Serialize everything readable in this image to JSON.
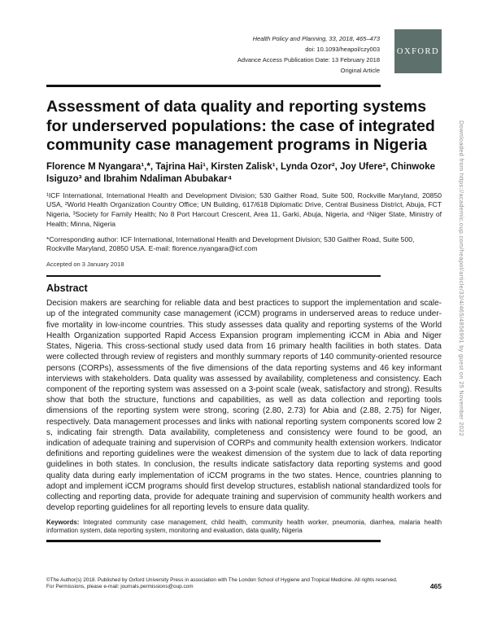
{
  "header": {
    "journal_line": "Health Policy and Planning, 33, 2018, 465–473",
    "doi_line": "doi: 10.1093/heapol/czy003",
    "advance_access_line": "Advance Access Publication Date: 13 February 2018",
    "article_type": "Original Article",
    "publisher_logo_text": "OXFORD",
    "publisher_logo_color": "#5e706c"
  },
  "article": {
    "title": "Assessment of data quality and reporting systems for underserved populations: the case of integrated community case management programs in Nigeria",
    "authors": "Florence M Nyangara¹,*, Tajrina Hai¹, Kirsten Zalisk¹, Lynda Ozor², Joy Ufere², Chinwoke Isiguzo³ and Ibrahim Ndaliman Abubakar⁴",
    "affiliations": "¹ICF International, International Health and Development Division; 530 Gaither Road, Suite 500, Rockville Maryland, 20850 USA, ²World Health Organization Country Office; UN Building, 617/618 Diplomatic Drive, Central Business District, Abuja, FCT Nigeria, ³Society for Family Health; No 8 Port Harcourt Crescent, Area 11, Garki, Abuja, Nigeria, and ⁴Niger State, Ministry of Health; Minna, Nigeria",
    "corresponding": "*Corresponding author: ICF International, International Health and Development Division; 530 Gaither Road, Suite 500, Rockville Maryland, 20850 USA. E-mail: florence.nyangara@icf.com",
    "accepted": "Accepted on 3 January 2018",
    "abstract_heading": "Abstract",
    "abstract": "Decision makers are searching for reliable data and best practices to support the implementation and scale-up of the integrated community case management (iCCM) programs in underserved areas to reduce under-five mortality in low-income countries. This study assesses data quality and reporting systems of the World Health Organization supported Rapid Access Expansion program implementing iCCM in Abia and Niger States, Nigeria. This cross-sectional study used data from 16 primary health facilities in both states. Data were collected through review of registers and monthly summary reports of 140 community-oriented resource persons (CORPs), assessments of the five dimensions of the data reporting systems and 46 key informant interviews with stakeholders. Data quality was assessed by availability, completeness and consistency. Each component of the reporting system was assessed on a 3-point scale (weak, satisfactory and strong). Results show that both the structure, functions and capabilities, as well as data collection and reporting tools dimensions of the reporting system were strong, scoring (2.80, 2.73) for Abia and (2.88, 2.75) for Niger, respectively. Data management processes and links with national reporting system components scored low 2 s, indicating fair strength. Data availability, completeness and consistency were found to be good, an indication of adequate training and supervision of CORPs and community health extension workers. Indicator definitions and reporting guidelines were the weakest dimension of the system due to lack of data reporting guidelines in both states. In conclusion, the results indicate satisfactory data reporting systems and good quality data during early implementation of iCCM programs in the two states. Hence, countries planning to adopt and implement iCCM programs should first develop structures, establish national standardized tools for collecting and reporting data, provide for adequate training and supervision of community health workers and develop reporting guidelines for all reporting levels to ensure data quality.",
    "keywords_label": "Keywords:",
    "keywords": " Integrated community case management, child health, community health worker, pneumonia, diarrhea, malaria health information system, data reporting system, monitoring and evaluation, data quality, Nigeria"
  },
  "footer": {
    "copyright": "©The Author(s) 2018. Published by Oxford University Press in association with The London School of Hygiene and Tropical Medicine. All rights reserved.",
    "permissions": "For Permissions, please e-mail: journals.permissions@oup.com",
    "page_number": "465"
  },
  "watermark": "Downloaded from https://academic.oup.com/heapol/article/33/4/465/4856991 by guest on 25 November 2022"
}
